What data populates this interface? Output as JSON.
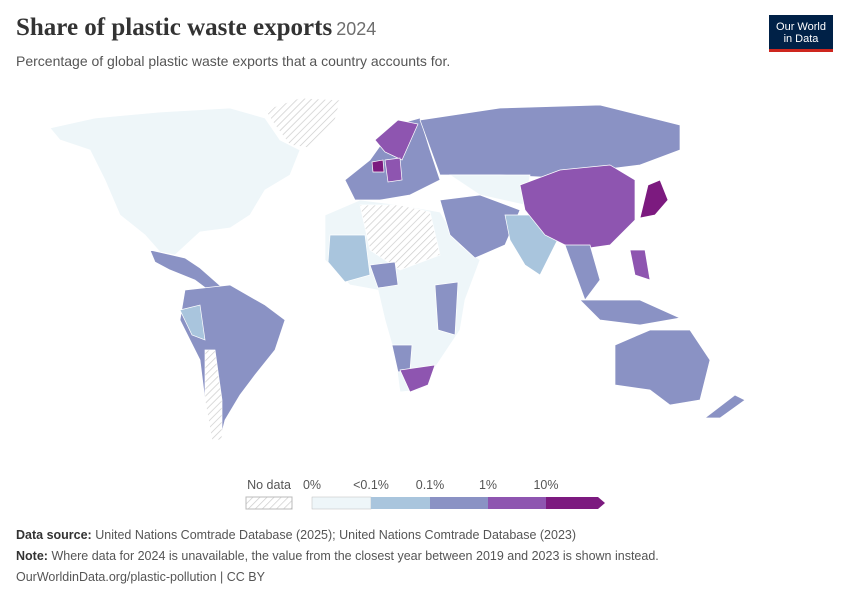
{
  "header": {
    "title": "Share of plastic waste exports",
    "year": "2024",
    "subtitle": "Percentage of global plastic waste exports that a country accounts for.",
    "logo": [
      "Our World",
      "in Data"
    ]
  },
  "legend": {
    "no_data": "No data",
    "bins": [
      "0%",
      "<0.1%",
      "0.1%",
      "1%",
      "10%"
    ]
  },
  "footer": {
    "source_label": "Data source:",
    "source": "United Nations Comtrade Database (2025); United Nations Comtrade Database (2023)",
    "note_label": "Note:",
    "note": "Where data for 2024 is unavailable, the value from the closest year between 2019 and 2023 is shown instead.",
    "url": "OurWorldinData.org/plastic-pollution | CC BY"
  }
}
